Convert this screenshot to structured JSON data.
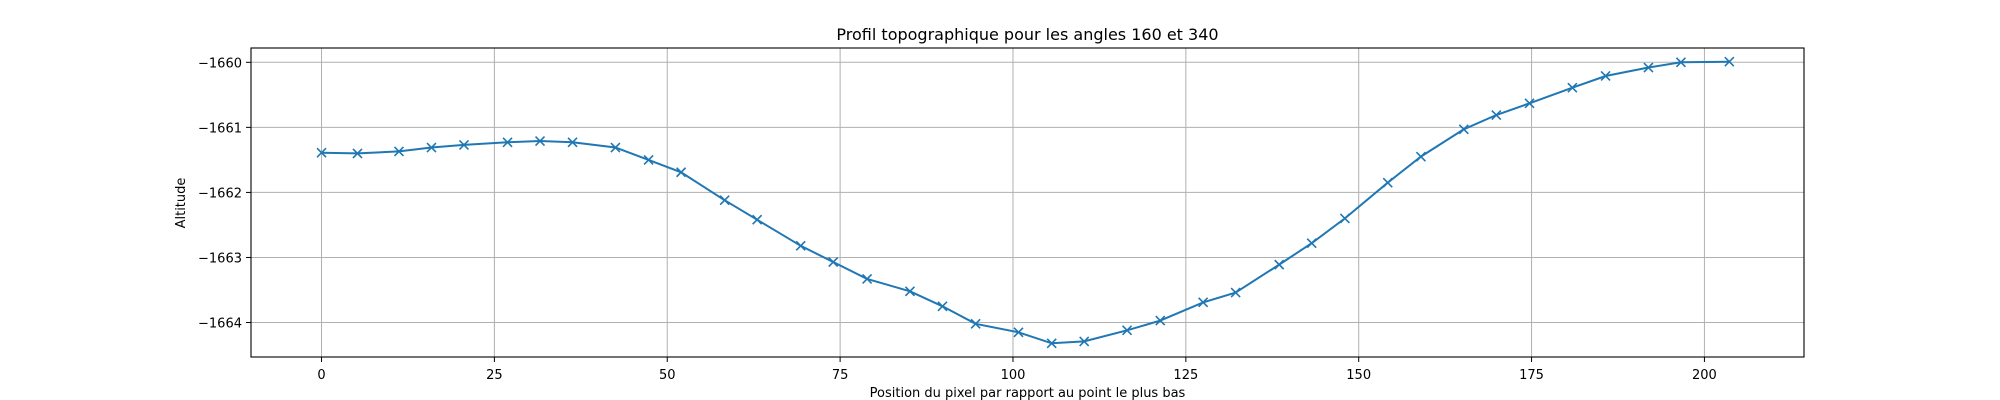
{
  "chart_data": {
    "type": "line",
    "title": "Profil topographique pour les angles 160 et 340",
    "xlabel": "Position du pixel par rapport au point le plus bas",
    "ylabel": "Altitude",
    "xlim": [
      -10.2,
      214.4
    ],
    "ylim": [
      -1664.53,
      -1659.78
    ],
    "xticks": [
      0,
      25,
      50,
      75,
      100,
      125,
      150,
      175,
      200
    ],
    "yticks": [
      -1664,
      -1663,
      -1662,
      -1661,
      -1660
    ],
    "xtick_labels": [
      "0",
      "25",
      "50",
      "75",
      "100",
      "125",
      "150",
      "175",
      "200"
    ],
    "ytick_labels": [
      "−1664",
      "−1663",
      "−1662",
      "−1661",
      "−1660"
    ],
    "grid": true,
    "series": [
      {
        "color": "#1f77b4",
        "marker": "x",
        "x": [
          0,
          5.2,
          11.2,
          15.9,
          20.6,
          26.9,
          31.6,
          36.3,
          42.5,
          47.3,
          52.0,
          58.3,
          63.0,
          69.3,
          74.0,
          78.9,
          85.1,
          89.8,
          94.6,
          100.8,
          105.6,
          110.3,
          116.5,
          121.3,
          127.5,
          132.2,
          138.5,
          143.2,
          148.0,
          154.2,
          159.0,
          165.2,
          169.9,
          174.7,
          180.9,
          185.7,
          191.9,
          196.6,
          203.6
        ],
        "y": [
          -1661.39,
          -1661.4,
          -1661.37,
          -1661.31,
          -1661.27,
          -1661.23,
          -1661.21,
          -1661.23,
          -1661.31,
          -1661.5,
          -1661.69,
          -1662.12,
          -1662.42,
          -1662.82,
          -1663.07,
          -1663.33,
          -1663.52,
          -1663.75,
          -1664.02,
          -1664.15,
          -1664.32,
          -1664.29,
          -1664.12,
          -1663.97,
          -1663.69,
          -1663.54,
          -1663.11,
          -1662.78,
          -1662.4,
          -1661.85,
          -1661.45,
          -1661.03,
          -1660.81,
          -1660.63,
          -1660.39,
          -1660.21,
          -1660.08,
          -1660.0,
          -1659.99
        ]
      }
    ]
  }
}
